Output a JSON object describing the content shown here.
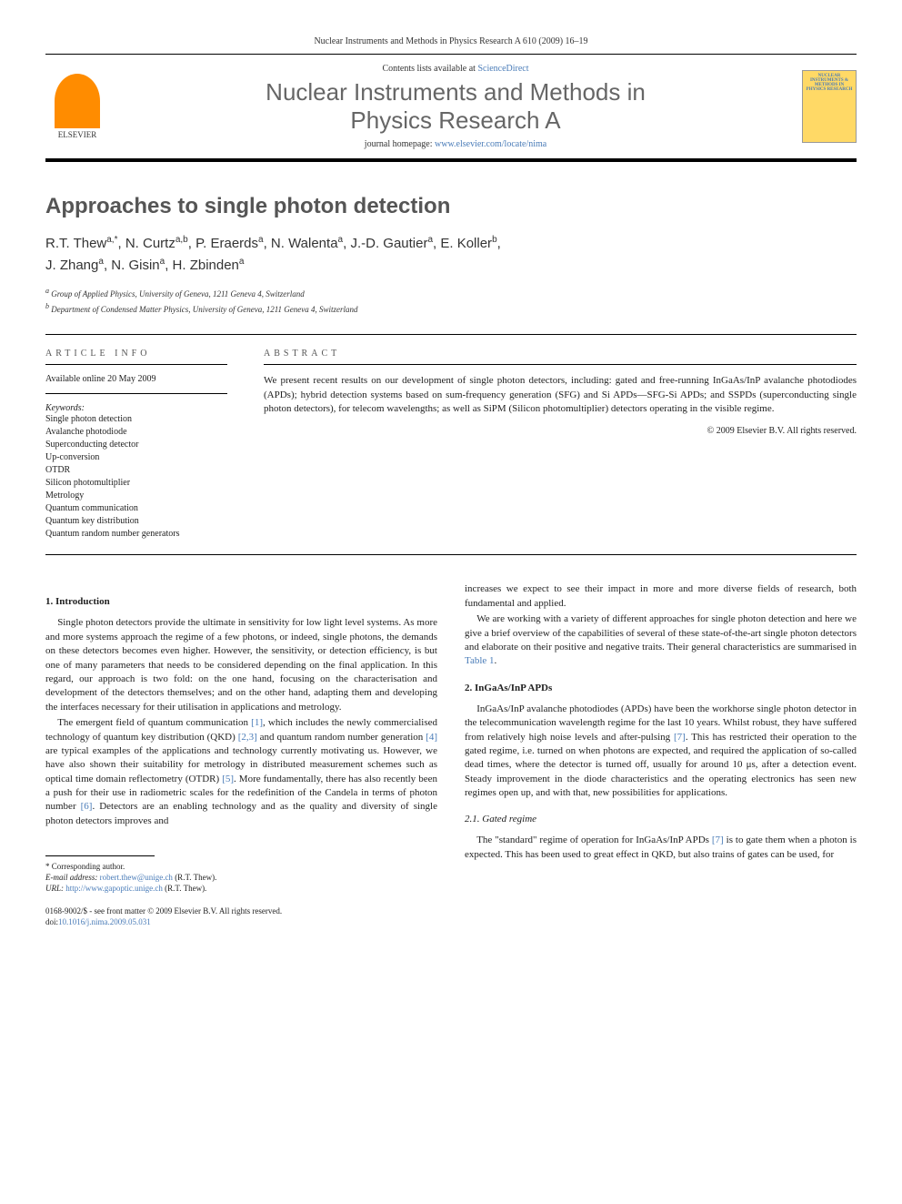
{
  "journal_header": "Nuclear Instruments and Methods in Physics Research A 610 (2009) 16–19",
  "header": {
    "contents_text": "Contents lists available at ",
    "sciencedirect": "ScienceDirect",
    "journal_title_1": "Nuclear Instruments and Methods in",
    "journal_title_2": "Physics Research A",
    "homepage_text": "journal homepage: ",
    "homepage_url": "www.elsevier.com/locate/nima",
    "elsevier_label": "ELSEVIER",
    "cover_text": "NUCLEAR INSTRUMENTS & METHODS IN PHYSICS RESEARCH"
  },
  "article": {
    "title": "Approaches to single photon detection",
    "authors_line1": "R.T. Thew",
    "authors_sup1": "a,*",
    "authors_1b": ", N. Curtz",
    "authors_sup2": "a,b",
    "authors_1c": ", P. Eraerds",
    "authors_sup3": "a",
    "authors_1d": ", N. Walenta",
    "authors_sup4": "a",
    "authors_1e": ", J.-D. Gautier",
    "authors_sup5": "a",
    "authors_1f": ", E. Koller",
    "authors_sup6": "b",
    "authors_1g": ",",
    "authors_line2a": "J. Zhang",
    "authors_sup7": "a",
    "authors_2b": ", N. Gisin",
    "authors_sup8": "a",
    "authors_2c": ", H. Zbinden",
    "authors_sup9": "a",
    "affiliations": {
      "a": "Group of Applied Physics, University of Geneva, 1211 Geneva 4, Switzerland",
      "b": "Department of Condensed Matter Physics, University of Geneva, 1211 Geneva 4, Switzerland"
    }
  },
  "info": {
    "heading": "ARTICLE INFO",
    "available": "Available online 20 May 2009",
    "keywords_label": "Keywords:",
    "keywords": [
      "Single photon detection",
      "Avalanche photodiode",
      "Superconducting detector",
      "Up-conversion",
      "OTDR",
      "Silicon photomultiplier",
      "Metrology",
      "Quantum communication",
      "Quantum key distribution",
      "Quantum random number generators"
    ]
  },
  "abstract": {
    "heading": "ABSTRACT",
    "text": "We present recent results on our development of single photon detectors, including: gated and free-running InGaAs/InP avalanche photodiodes (APDs); hybrid detection systems based on sum-frequency generation (SFG) and Si APDs—SFG-Si APDs; and SSPDs (superconducting single photon detectors), for telecom wavelengths; as well as SiPM (Silicon photomultiplier) detectors operating in the visible regime.",
    "copyright": "© 2009 Elsevier B.V. All rights reserved."
  },
  "sections": {
    "s1_heading": "1.  Introduction",
    "s1_p1a": "Single photon detectors provide the ultimate in sensitivity for low light level systems. As more and more systems approach the regime of a few photons, or indeed, single photons, the demands on these detectors becomes even higher. However, the sensitivity, or detection efficiency, is but one of many parameters that needs to be considered depending on the final application. In this regard, our approach is two fold: on the one hand, focusing on the characterisation and development of the detectors themselves; and on the other hand, adapting them and developing the interfaces necessary for their utilisation in applications and metrology.",
    "s1_p2a": "The emergent field of quantum communication ",
    "s1_ref1": "[1]",
    "s1_p2b": ", which includes the newly commercialised technology of quantum key distribution (QKD) ",
    "s1_ref23": "[2,3]",
    "s1_p2c": " and quantum random number generation ",
    "s1_ref4": "[4]",
    "s1_p2d": " are typical examples of the applications and technology currently motivating us. However, we have also shown their suitability for metrology in distributed measurement schemes such as optical time domain reflectometry (OTDR) ",
    "s1_ref5": "[5]",
    "s1_p2e": ". More fundamentally, there has also recently been a push for their use in radiometric scales for the redefinition of the Candela in terms of photon number ",
    "s1_ref6": "[6]",
    "s1_p2f": ". Detectors are an enabling technology and as the quality and diversity of single photon detectors improves and",
    "s1_p3": "increases we expect to see their impact in more and more diverse fields of research, both fundamental and applied.",
    "s1_p4a": "We are working with a variety of different approaches for single photon detection and here we give a brief overview of the capabilities of several of these state-of-the-art single photon detectors and elaborate on their positive and negative traits. Their general characteristics are summarised in ",
    "s1_table1": "Table 1",
    "s1_p4b": ".",
    "s2_heading": "2.  InGaAs/InP APDs",
    "s2_p1a": "InGaAs/InP avalanche photodiodes (APDs) have been the workhorse single photon detector in the telecommunication wavelength regime for the last 10 years. Whilst robust, they have suffered from relatively high noise levels and after-pulsing ",
    "s2_ref7": "[7]",
    "s2_p1b": ". This has restricted their operation to the gated regime, i.e. turned on when photons are expected, and required the application of so-called dead times, where the detector is turned off, usually for around 10 μs, after a detection event. Steady improvement in the diode characteristics and the operating electronics has seen new regimes open up, and with that, new possibilities for applications.",
    "s21_heading": "2.1.  Gated regime",
    "s21_p1a": "The \"standard\" regime of operation for InGaAs/InP APDs ",
    "s21_ref7": "[7]",
    "s21_p1b": " is to gate them when a photon is expected. This has been used to great effect in QKD, but also trains of gates can be used, for"
  },
  "footer": {
    "corresponding": "* Corresponding author.",
    "email_label": "E-mail address: ",
    "email": "robert.thew@unige.ch",
    "email_name": " (R.T. Thew).",
    "url_label": "URL: ",
    "url": "http://www.gapoptic.unige.ch",
    "url_name": " (R.T. Thew).",
    "issn": "0168-9002/$ - see front matter © 2009 Elsevier B.V. All rights reserved.",
    "doi_label": "doi:",
    "doi": "10.1016/j.nima.2009.05.031"
  },
  "colors": {
    "link": "#4a7cb8",
    "text": "#222222",
    "heading": "#555555",
    "orange": "#ff8c00",
    "cover_bg": "#ffd966"
  }
}
